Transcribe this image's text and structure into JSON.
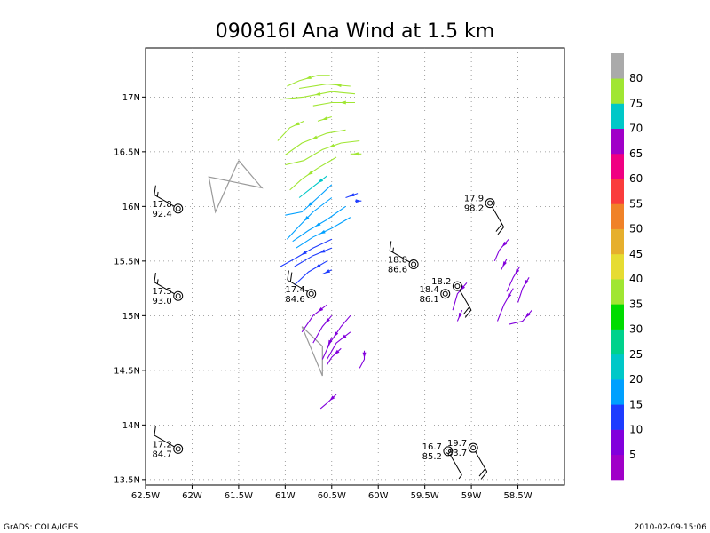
{
  "chart_data": {
    "type": "vector-field",
    "title": "090816I Ana Wind at 1.5 km",
    "xlim": [
      -62.5,
      -58.0
    ],
    "ylim": [
      13.45,
      17.45
    ],
    "x_ticks": [
      {
        "value": -62.5,
        "label": "62.5W"
      },
      {
        "value": -62.0,
        "label": "62W"
      },
      {
        "value": -61.5,
        "label": "61.5W"
      },
      {
        "value": -61.0,
        "label": "61W"
      },
      {
        "value": -60.5,
        "label": "60.5W"
      },
      {
        "value": -60.0,
        "label": "60W"
      },
      {
        "value": -59.5,
        "label": "59.5W"
      },
      {
        "value": -59.0,
        "label": "59W"
      },
      {
        "value": -58.5,
        "label": "58.5W"
      }
    ],
    "y_ticks": [
      {
        "value": 13.5,
        "label": "13.5N"
      },
      {
        "value": 14.0,
        "label": "14N"
      },
      {
        "value": 14.5,
        "label": "14.5N"
      },
      {
        "value": 15.0,
        "label": "15N"
      },
      {
        "value": 15.5,
        "label": "15.5N"
      },
      {
        "value": 16.0,
        "label": "16N"
      },
      {
        "value": 16.5,
        "label": "16.5N"
      },
      {
        "value": 17.0,
        "label": "17N"
      }
    ],
    "grid": true,
    "colorbar": {
      "labels": [
        "5",
        "10",
        "15",
        "20",
        "25",
        "30",
        "35",
        "40",
        "45",
        "50",
        "55",
        "60",
        "65",
        "70",
        "75",
        "80"
      ],
      "colors": [
        "#a000c8",
        "#8200dc",
        "#1e3cff",
        "#00a0ff",
        "#00c8c8",
        "#00d28c",
        "#00dc00",
        "#a0e632",
        "#e6dc32",
        "#e6af2d",
        "#f08228",
        "#fa3c3c",
        "#f00082",
        "#a000c8",
        "#00c8c8",
        "#a0e632",
        "#aaaaaa"
      ]
    },
    "stations": [
      {
        "lon": -62.15,
        "lat": 15.98,
        "value_top": "17.8",
        "value_bottom": "92.4",
        "wind_dir_deg": 300,
        "wind_kt": 15
      },
      {
        "lon": -62.15,
        "lat": 15.18,
        "value_top": "17.5",
        "value_bottom": "93.0",
        "wind_dir_deg": 300,
        "wind_kt": 15
      },
      {
        "lon": -62.15,
        "lat": 13.78,
        "value_top": "17.2",
        "value_bottom": "84.7",
        "wind_dir_deg": 300,
        "wind_kt": 10
      },
      {
        "lon": -60.72,
        "lat": 15.2,
        "value_top": "17.4",
        "value_bottom": "84.6",
        "wind_dir_deg": 300,
        "wind_kt": 20
      },
      {
        "lon": -59.62,
        "lat": 15.47,
        "value_top": "18.8",
        "value_bottom": "86.6",
        "wind_dir_deg": 300,
        "wind_kt": 15
      },
      {
        "lon": -59.28,
        "lat": 15.2,
        "value_top": "18.4",
        "value_bottom": "86.1",
        "wind_dir_deg": 0,
        "wind_kt": 0
      },
      {
        "lon": -59.15,
        "lat": 15.27,
        "value_top": "18.2",
        "value_bottom": "",
        "wind_dir_deg": 150,
        "wind_kt": 20
      },
      {
        "lon": -58.8,
        "lat": 16.03,
        "value_top": "17.9",
        "value_bottom": "98.2",
        "wind_dir_deg": 150,
        "wind_kt": 20
      },
      {
        "lon": -59.25,
        "lat": 13.76,
        "value_top": "16.7",
        "value_bottom": "85.2",
        "wind_dir_deg": 150,
        "wind_kt": 5
      },
      {
        "lon": -58.98,
        "lat": 13.79,
        "value_top": "19.7",
        "value_bottom": "83.7",
        "wind_dir_deg": 150,
        "wind_kt": 20
      }
    ],
    "streams": [
      {
        "speed": 75,
        "pts": [
          [
            -60.52,
            17.2
          ],
          [
            -60.65,
            17.2
          ],
          [
            -60.85,
            17.15
          ],
          [
            -60.98,
            17.1
          ]
        ]
      },
      {
        "speed": 75,
        "pts": [
          [
            -60.3,
            17.1
          ],
          [
            -60.55,
            17.12
          ],
          [
            -60.85,
            17.08
          ]
        ]
      },
      {
        "speed": 75,
        "pts": [
          [
            -60.25,
            17.03
          ],
          [
            -60.5,
            17.05
          ],
          [
            -60.8,
            17.0
          ],
          [
            -61.05,
            16.98
          ]
        ]
      },
      {
        "speed": 75,
        "pts": [
          [
            -60.25,
            16.95
          ],
          [
            -60.5,
            16.95
          ],
          [
            -60.7,
            16.92
          ]
        ]
      },
      {
        "speed": 75,
        "pts": [
          [
            -60.5,
            16.82
          ],
          [
            -60.65,
            16.78
          ]
        ]
      },
      {
        "speed": 75,
        "pts": [
          [
            -60.8,
            16.78
          ],
          [
            -60.95,
            16.72
          ],
          [
            -61.08,
            16.6
          ]
        ]
      },
      {
        "speed": 75,
        "pts": [
          [
            -60.35,
            16.7
          ],
          [
            -60.55,
            16.67
          ],
          [
            -60.82,
            16.58
          ],
          [
            -61.0,
            16.47
          ]
        ]
      },
      {
        "speed": 75,
        "pts": [
          [
            -60.2,
            16.6
          ],
          [
            -60.4,
            16.58
          ],
          [
            -60.6,
            16.52
          ],
          [
            -60.8,
            16.42
          ],
          [
            -61.0,
            16.38
          ]
        ]
      },
      {
        "speed": 75,
        "pts": [
          [
            -60.18,
            16.48
          ],
          [
            -60.3,
            16.48
          ]
        ]
      },
      {
        "speed": 75,
        "pts": [
          [
            -60.45,
            16.45
          ],
          [
            -60.65,
            16.35
          ],
          [
            -60.82,
            16.25
          ],
          [
            -60.95,
            16.15
          ]
        ]
      },
      {
        "speed": 20,
        "pts": [
          [
            -60.55,
            16.28
          ],
          [
            -60.7,
            16.18
          ],
          [
            -60.85,
            16.08
          ]
        ]
      },
      {
        "speed": 15,
        "pts": [
          [
            -60.5,
            16.2
          ],
          [
            -60.65,
            16.08
          ],
          [
            -60.82,
            15.95
          ],
          [
            -61.0,
            15.92
          ]
        ]
      },
      {
        "speed": 15,
        "pts": [
          [
            -60.5,
            16.08
          ],
          [
            -60.7,
            15.95
          ],
          [
            -60.85,
            15.82
          ],
          [
            -60.98,
            15.7
          ]
        ]
      },
      {
        "speed": 15,
        "pts": [
          [
            -60.35,
            16.0
          ],
          [
            -60.55,
            15.88
          ],
          [
            -60.75,
            15.78
          ],
          [
            -60.92,
            15.68
          ]
        ]
      },
      {
        "speed": 15,
        "pts": [
          [
            -60.3,
            15.9
          ],
          [
            -60.5,
            15.8
          ],
          [
            -60.7,
            15.72
          ],
          [
            -60.88,
            15.62
          ]
        ]
      },
      {
        "speed": 10,
        "pts": [
          [
            -60.22,
            16.12
          ],
          [
            -60.35,
            16.08
          ]
        ]
      },
      {
        "speed": 10,
        "pts": [
          [
            -60.25,
            16.05
          ],
          [
            -60.18,
            16.05
          ]
        ]
      },
      {
        "speed": 10,
        "pts": [
          [
            -60.5,
            15.7
          ],
          [
            -60.7,
            15.62
          ],
          [
            -60.9,
            15.52
          ],
          [
            -61.05,
            15.45
          ]
        ]
      },
      {
        "speed": 10,
        "pts": [
          [
            -60.5,
            15.62
          ],
          [
            -60.7,
            15.55
          ],
          [
            -60.9,
            15.45
          ]
        ]
      },
      {
        "speed": 10,
        "pts": [
          [
            -60.55,
            15.5
          ],
          [
            -60.75,
            15.4
          ],
          [
            -60.9,
            15.28
          ]
        ]
      },
      {
        "speed": 10,
        "pts": [
          [
            -60.5,
            15.42
          ],
          [
            -60.6,
            15.38
          ]
        ]
      },
      {
        "speed": 5,
        "pts": [
          [
            -60.55,
            15.1
          ],
          [
            -60.7,
            15.0
          ],
          [
            -60.82,
            14.85
          ]
        ]
      },
      {
        "speed": 5,
        "pts": [
          [
            -60.5,
            15.0
          ],
          [
            -60.6,
            14.9
          ],
          [
            -60.7,
            14.75
          ]
        ]
      },
      {
        "speed": 5,
        "pts": [
          [
            -60.3,
            15.0
          ],
          [
            -60.4,
            14.9
          ],
          [
            -60.52,
            14.75
          ],
          [
            -60.6,
            14.6
          ]
        ]
      },
      {
        "speed": 5,
        "pts": [
          [
            -60.3,
            14.85
          ],
          [
            -60.45,
            14.75
          ],
          [
            -60.55,
            14.6
          ]
        ]
      },
      {
        "speed": 5,
        "pts": [
          [
            -60.5,
            14.8
          ],
          [
            -60.55,
            14.7
          ]
        ]
      },
      {
        "speed": 5,
        "pts": [
          [
            -60.4,
            14.7
          ],
          [
            -60.5,
            14.62
          ],
          [
            -60.55,
            14.55
          ]
        ]
      },
      {
        "speed": 5,
        "pts": [
          [
            -60.15,
            14.68
          ],
          [
            -60.15,
            14.6
          ],
          [
            -60.2,
            14.52
          ]
        ]
      },
      {
        "speed": 5,
        "pts": [
          [
            -60.45,
            14.28
          ],
          [
            -60.55,
            14.2
          ],
          [
            -60.62,
            14.15
          ]
        ]
      },
      {
        "speed": 5,
        "pts": [
          [
            -59.05,
            15.3
          ],
          [
            -59.15,
            15.2
          ],
          [
            -59.2,
            15.05
          ]
        ]
      },
      {
        "speed": 5,
        "pts": [
          [
            -59.1,
            15.05
          ],
          [
            -59.15,
            14.95
          ]
        ]
      },
      {
        "speed": 5,
        "pts": [
          [
            -58.6,
            15.7
          ],
          [
            -58.7,
            15.6
          ],
          [
            -58.75,
            15.5
          ]
        ]
      },
      {
        "speed": 5,
        "pts": [
          [
            -58.62,
            15.52
          ],
          [
            -58.68,
            15.42
          ]
        ]
      },
      {
        "speed": 5,
        "pts": [
          [
            -58.48,
            15.45
          ],
          [
            -58.55,
            15.35
          ],
          [
            -58.62,
            15.22
          ]
        ]
      },
      {
        "speed": 5,
        "pts": [
          [
            -58.55,
            15.25
          ],
          [
            -58.65,
            15.1
          ],
          [
            -58.72,
            14.95
          ]
        ]
      },
      {
        "speed": 5,
        "pts": [
          [
            -58.38,
            15.35
          ],
          [
            -58.45,
            15.25
          ],
          [
            -58.5,
            15.12
          ]
        ]
      },
      {
        "speed": 5,
        "pts": [
          [
            -58.35,
            15.05
          ],
          [
            -58.45,
            14.95
          ],
          [
            -58.6,
            14.92
          ]
        ]
      }
    ],
    "track_a": [
      [
        -61.5,
        16.42
      ],
      [
        -61.25,
        16.17
      ],
      [
        -61.82,
        16.27
      ],
      [
        -61.75,
        15.95
      ],
      [
        -61.5,
        16.42
      ]
    ],
    "track_b": [
      [
        -60.82,
        14.9
      ],
      [
        -60.6,
        14.45
      ],
      [
        -60.6,
        14.72
      ],
      [
        -60.82,
        14.9
      ]
    ],
    "footer_left": "GrADS: COLA/IGES",
    "footer_right": "2010-02-09-15:06"
  }
}
